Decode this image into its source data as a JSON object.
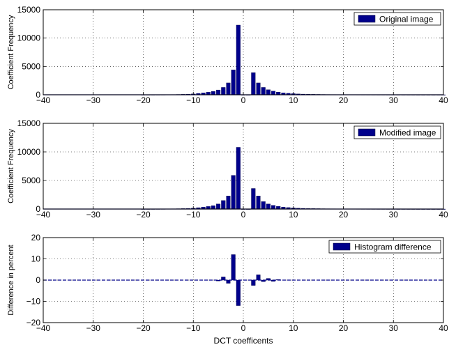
{
  "chart_data": [
    {
      "type": "bar",
      "ylabel": "Coefficient Frequency",
      "xlabel": "",
      "xlim": [
        -40,
        40
      ],
      "ylim": [
        0,
        15000
      ],
      "xticks": [
        -40,
        -30,
        -20,
        -10,
        0,
        10,
        20,
        30,
        40
      ],
      "yticks": [
        0,
        5000,
        10000,
        15000
      ],
      "grid": true,
      "legend": "top-right",
      "series": [
        {
          "name": "Original image",
          "color": "#00008b",
          "x": [
            -20,
            -19,
            -18,
            -17,
            -16,
            -15,
            -14,
            -13,
            -12,
            -11,
            -10,
            -9,
            -8,
            -7,
            -6,
            -5,
            -4,
            -3,
            -2,
            -1,
            0,
            1,
            2,
            3,
            4,
            5,
            6,
            7,
            8,
            9,
            10,
            11,
            12,
            13,
            14,
            15,
            16,
            17,
            18,
            19,
            20,
            21,
            22,
            23,
            24,
            25,
            26,
            27,
            28,
            29,
            30,
            31,
            32,
            33,
            34,
            35,
            36,
            37,
            38,
            39,
            40
          ],
          "values": [
            5,
            8,
            10,
            15,
            20,
            30,
            45,
            60,
            80,
            110,
            160,
            240,
            330,
            450,
            600,
            850,
            1300,
            2100,
            4400,
            12300,
            0,
            0,
            3900,
            2100,
            1300,
            900,
            650,
            480,
            350,
            260,
            200,
            150,
            120,
            100,
            85,
            70,
            60,
            50,
            45,
            40,
            35,
            30,
            28,
            25,
            22,
            20,
            18,
            16,
            15,
            13,
            12,
            10,
            9,
            8,
            7,
            6,
            5,
            5,
            4,
            4,
            3
          ]
        }
      ]
    },
    {
      "type": "bar",
      "ylabel": "Coefficient Frequency",
      "xlabel": "",
      "xlim": [
        -40,
        40
      ],
      "ylim": [
        0,
        15000
      ],
      "xticks": [
        -40,
        -30,
        -20,
        -10,
        0,
        10,
        20,
        30,
        40
      ],
      "yticks": [
        0,
        5000,
        10000,
        15000
      ],
      "grid": true,
      "legend": "top-right",
      "series": [
        {
          "name": "Modified image",
          "color": "#00008b",
          "x": [
            -20,
            -19,
            -18,
            -17,
            -16,
            -15,
            -14,
            -13,
            -12,
            -11,
            -10,
            -9,
            -8,
            -7,
            -6,
            -5,
            -4,
            -3,
            -2,
            -1,
            0,
            1,
            2,
            3,
            4,
            5,
            6,
            7,
            8,
            9,
            10,
            11,
            12,
            13,
            14,
            15,
            16,
            17,
            18,
            19,
            20,
            21,
            22,
            23,
            24,
            25,
            26,
            27,
            28,
            29,
            30,
            31,
            32,
            33,
            34,
            35,
            36,
            37,
            38,
            39,
            40
          ],
          "values": [
            5,
            8,
            10,
            15,
            20,
            30,
            45,
            60,
            80,
            110,
            160,
            240,
            330,
            450,
            600,
            900,
            1500,
            2300,
            5900,
            10800,
            0,
            0,
            3600,
            2300,
            1300,
            900,
            650,
            480,
            350,
            260,
            200,
            150,
            120,
            100,
            85,
            70,
            60,
            50,
            45,
            40,
            35,
            30,
            28,
            25,
            22,
            20,
            18,
            16,
            15,
            13,
            12,
            10,
            9,
            8,
            7,
            6,
            5,
            5,
            4,
            4,
            3
          ]
        }
      ]
    },
    {
      "type": "bar",
      "ylabel": "Difference in percent",
      "xlabel": "DCT coefficents",
      "xlim": [
        -40,
        40
      ],
      "ylim": [
        -20,
        20
      ],
      "xticks": [
        -40,
        -30,
        -20,
        -10,
        0,
        10,
        20,
        30,
        40
      ],
      "yticks": [
        -20,
        -10,
        0,
        10,
        20
      ],
      "grid": true,
      "legend": "top-right",
      "baseline_dashed": true,
      "series": [
        {
          "name": "Histogram difference",
          "color": "#00008b",
          "x": [
            -5,
            -4,
            -3,
            -2,
            -1,
            2,
            3,
            4,
            5,
            6,
            7
          ],
          "values": [
            -0.4,
            1.5,
            -1.5,
            12,
            -12,
            -2.5,
            2.5,
            -0.7,
            0.8,
            -0.6,
            0.3
          ]
        }
      ]
    }
  ]
}
